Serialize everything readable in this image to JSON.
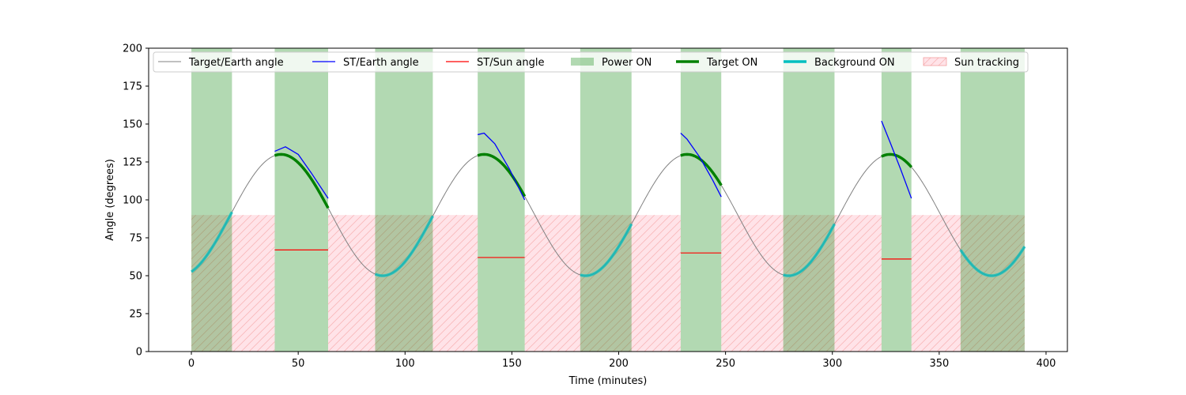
{
  "chart_data": {
    "type": "line",
    "title": "",
    "xlabel": "Time (minutes)",
    "ylabel": "Angle (degrees)",
    "xlim": [
      -20,
      410
    ],
    "ylim": [
      0,
      200
    ],
    "xticks": [
      0,
      50,
      100,
      150,
      200,
      250,
      300,
      350,
      400
    ],
    "yticks": [
      0,
      25,
      50,
      75,
      100,
      125,
      150,
      175,
      200
    ],
    "grid": false,
    "legend_position": "top",
    "target_earth_angle": {
      "name": "Target/Earth angle",
      "color": "#808080",
      "model": "sinusoid",
      "mean": 90,
      "amplitude": 40,
      "period_minutes": 95,
      "peak_time_minutes": 42,
      "x_range": [
        0,
        390
      ]
    },
    "st_earth_angle": {
      "name": "ST/Earth angle",
      "color": "#0000ff",
      "segments": [
        {
          "x": [
            39,
            44,
            50,
            56,
            64
          ],
          "y": [
            132,
            135,
            130,
            118,
            101
          ]
        },
        {
          "x": [
            134,
            137,
            142,
            149,
            156
          ],
          "y": [
            143,
            144,
            137,
            120,
            100
          ]
        },
        {
          "x": [
            229,
            232,
            238,
            244,
            248
          ],
          "y": [
            144,
            140,
            128,
            113,
            102
          ]
        },
        {
          "x": [
            323,
            327,
            332,
            337
          ],
          "y": [
            152,
            138,
            120,
            101
          ]
        }
      ]
    },
    "st_sun_angle": {
      "name": "ST/Sun angle",
      "color": "#ff0000",
      "segments": [
        {
          "x": [
            39,
            64
          ],
          "y": [
            67,
            67
          ]
        },
        {
          "x": [
            134,
            156
          ],
          "y": [
            62,
            62
          ]
        },
        {
          "x": [
            229,
            248
          ],
          "y": [
            65,
            65
          ]
        },
        {
          "x": [
            323,
            337
          ],
          "y": [
            61,
            61
          ]
        }
      ]
    },
    "power_on": {
      "name": "Power ON",
      "color": "#008000",
      "intervals": [
        [
          0,
          19
        ],
        [
          39,
          64
        ],
        [
          86,
          113
        ],
        [
          134,
          156
        ],
        [
          182,
          206
        ],
        [
          229,
          248
        ],
        [
          277,
          301
        ],
        [
          323,
          337
        ],
        [
          360,
          390
        ]
      ]
    },
    "target_on": {
      "name": "Target ON",
      "color": "#008000",
      "intervals": [
        [
          39,
          64
        ],
        [
          134,
          156
        ],
        [
          229,
          248
        ],
        [
          323,
          337
        ]
      ]
    },
    "background_on": {
      "name": "Background ON",
      "color": "#00bfbf",
      "intervals": [
        [
          0,
          19
        ],
        [
          86,
          113
        ],
        [
          182,
          206
        ],
        [
          277,
          301
        ],
        [
          360,
          390
        ]
      ]
    },
    "sun_tracking": {
      "name": "Sun tracking",
      "color": "#ffc0cb",
      "y_max": 90,
      "intervals": [
        [
          0,
          39
        ],
        [
          64,
          134
        ],
        [
          156,
          229
        ],
        [
          248,
          323
        ],
        [
          337,
          390
        ]
      ]
    },
    "legend": [
      "Target/Earth angle",
      "ST/Earth angle",
      "ST/Sun angle",
      "Power ON",
      "Target ON",
      "Background ON",
      "Sun tracking"
    ]
  }
}
